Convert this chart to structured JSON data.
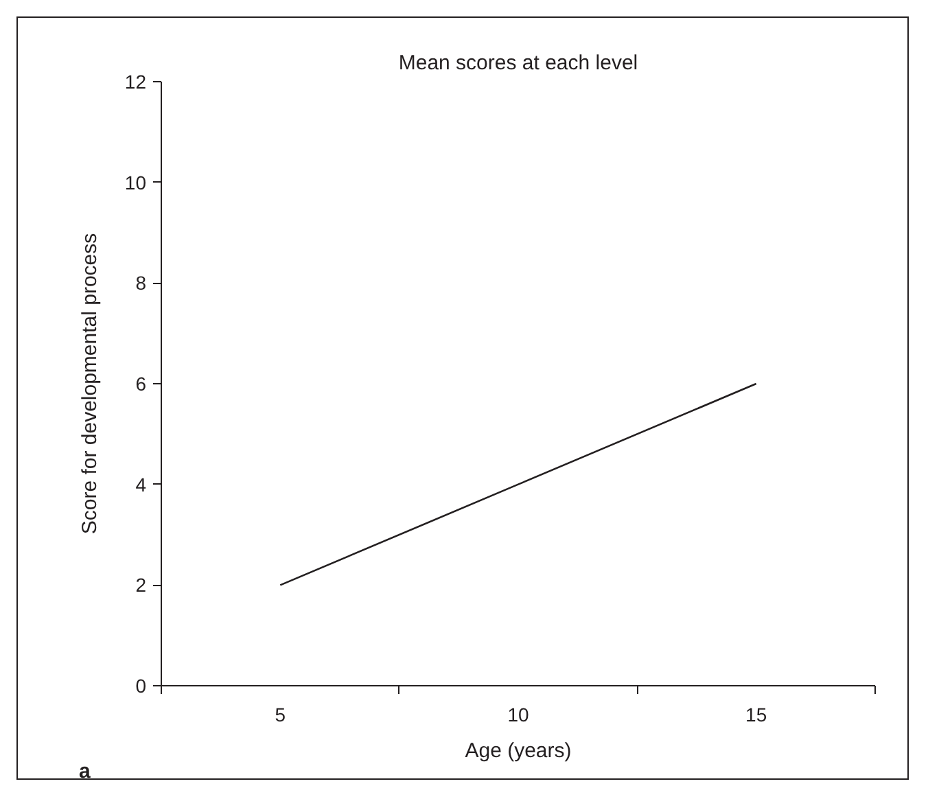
{
  "chart_data": {
    "type": "line",
    "title": "Mean scores at each level",
    "xlabel": "Age (years)",
    "ylabel": "Score for developmental process",
    "categories": [
      "5",
      "10",
      "15"
    ],
    "series": [
      {
        "color": "#231f20",
        "values": [
          2,
          4,
          6
        ]
      }
    ],
    "ylim": [
      0,
      12
    ],
    "yticks": [
      0,
      2,
      4,
      6,
      8,
      10,
      12
    ],
    "grid": false,
    "marker": "none",
    "line_style": "solid",
    "annotations": [
      "a"
    ]
  }
}
